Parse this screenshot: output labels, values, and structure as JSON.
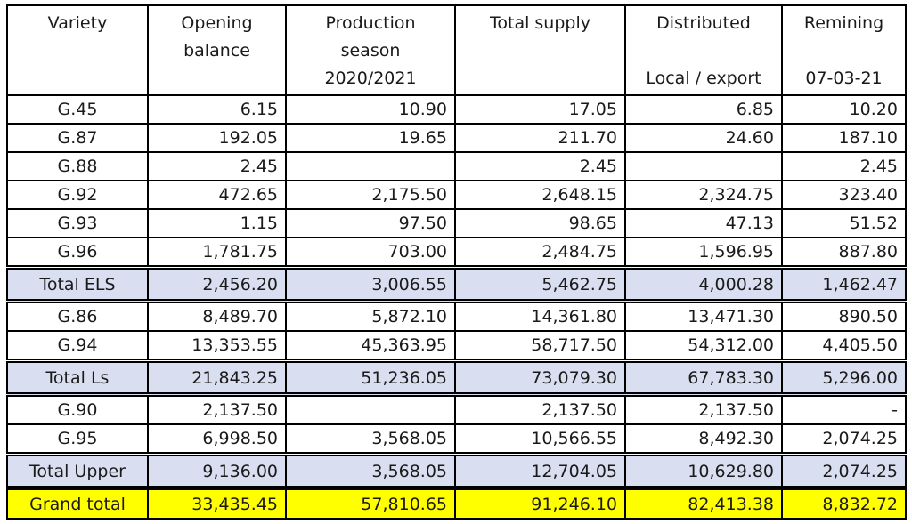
{
  "headers": [
    [
      "Variety"
    ],
    [
      "Opening",
      "balance"
    ],
    [
      "Production",
      "season",
      "2020/2021"
    ],
    [
      "Total supply"
    ],
    [
      "Distributed",
      "",
      "Local / export"
    ],
    [
      "Remining",
      "",
      "07-03-21"
    ]
  ],
  "rows": [
    {
      "type": "data",
      "cells": [
        "G.45",
        "6.15",
        "10.90",
        "17.05",
        "6.85",
        "10.20"
      ]
    },
    {
      "type": "data",
      "cells": [
        "G.87",
        "192.05",
        "19.65",
        "211.70",
        "24.60",
        "187.10"
      ]
    },
    {
      "type": "data",
      "cells": [
        "G.88",
        "2.45",
        "",
        "2.45",
        "",
        "2.45"
      ]
    },
    {
      "type": "data",
      "cells": [
        "G.92",
        "472.65",
        "2,175.50",
        "2,648.15",
        "2,324.75",
        "323.40"
      ]
    },
    {
      "type": "data",
      "cells": [
        "G.93",
        "1.15",
        "97.50",
        "98.65",
        "47.13",
        "51.52"
      ]
    },
    {
      "type": "data",
      "cells": [
        "G.96",
        "1,781.75",
        "703.00",
        "2,484.75",
        "1,596.95",
        "887.80"
      ]
    },
    {
      "type": "total",
      "cells": [
        "Total ELS",
        "2,456.20",
        "3,006.55",
        "5,462.75",
        "4,000.28",
        "1,462.47"
      ]
    },
    {
      "type": "data",
      "cells": [
        "G.86",
        "8,489.70",
        "5,872.10",
        "14,361.80",
        "13,471.30",
        "890.50"
      ]
    },
    {
      "type": "data",
      "cells": [
        "G.94",
        "13,353.55",
        "45,363.95",
        "58,717.50",
        "54,312.00",
        "4,405.50"
      ]
    },
    {
      "type": "total",
      "cells": [
        "Total Ls",
        "21,843.25",
        "51,236.05",
        "73,079.30",
        "67,783.30",
        "5,296.00"
      ]
    },
    {
      "type": "data",
      "cells": [
        "G.90",
        "2,137.50",
        "",
        "2,137.50",
        "2,137.50",
        "-"
      ]
    },
    {
      "type": "data",
      "cells": [
        "G.95",
        "6,998.50",
        "3,568.05",
        "10,566.55",
        "8,492.30",
        "2,074.25"
      ]
    },
    {
      "type": "total",
      "cells": [
        "Total Upper",
        "9,136.00",
        "3,568.05",
        "12,704.05",
        "10,629.80",
        "2,074.25"
      ]
    },
    {
      "type": "grand",
      "cells": [
        "Grand total",
        "33,435.45",
        "57,810.65",
        "91,246.10",
        "82,413.38",
        "8,832.72"
      ]
    }
  ],
  "colors": {
    "total_row": "#d9dff0",
    "grand_total_row": "#ffff00"
  }
}
